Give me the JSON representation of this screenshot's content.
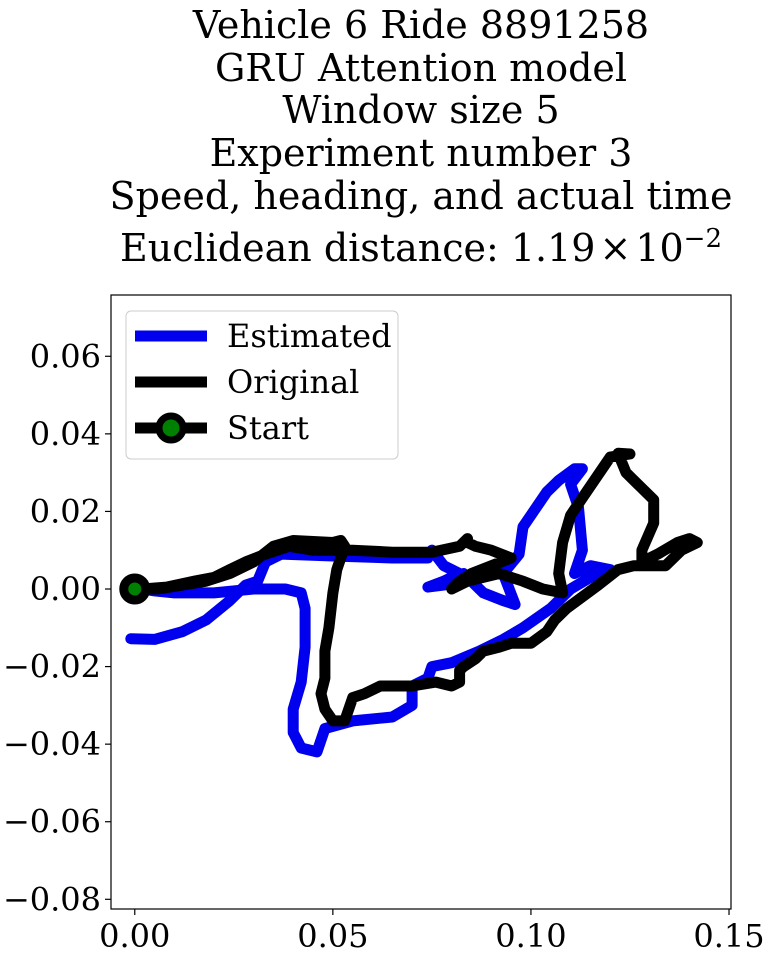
{
  "chart_data": {
    "type": "line",
    "title_lines": [
      "Vehicle 6 Ride 8891258",
      "GRU Attention model",
      "Window size 5",
      "Experiment number 3",
      "Speed, heading, and actual time"
    ],
    "title_distance": {
      "prefix": "Euclidean distance: ",
      "mantissa": "1.19",
      "times": "×",
      "base": "10",
      "exponent": "−2"
    },
    "xlim": [
      -0.006,
      0.1505
    ],
    "ylim": [
      -0.0825,
      0.0758
    ],
    "xticks": [
      {
        "value": 0.0,
        "label": "0.00"
      },
      {
        "value": 0.05,
        "label": "0.05"
      },
      {
        "value": 0.1,
        "label": "0.10"
      },
      {
        "value": 0.15,
        "label": "0.15"
      }
    ],
    "yticks": [
      {
        "value": 0.06,
        "label": "0.06"
      },
      {
        "value": 0.04,
        "label": "0.04"
      },
      {
        "value": 0.02,
        "label": "0.02"
      },
      {
        "value": 0.0,
        "label": "0.00"
      },
      {
        "value": -0.02,
        "label": "−0.02"
      },
      {
        "value": -0.04,
        "label": "−0.04"
      },
      {
        "value": -0.06,
        "label": "−0.06"
      },
      {
        "value": -0.08,
        "label": "−0.08"
      }
    ],
    "grid": false,
    "legend_position": "top-left",
    "legend": [
      {
        "label": "Estimated",
        "kind": "line",
        "color": "#0000ee"
      },
      {
        "label": "Original",
        "kind": "line",
        "color": "#000000"
      },
      {
        "label": "Start",
        "kind": "marker",
        "color": "#000000",
        "marker_color": "#008000"
      }
    ],
    "series": [
      {
        "name": "Estimated",
        "color": "#0000ee",
        "points": [
          [
            -0.001,
            -0.0128
          ],
          [
            0.005,
            -0.013
          ],
          [
            0.012,
            -0.011
          ],
          [
            0.018,
            -0.008
          ],
          [
            0.024,
            -0.003
          ],
          [
            0.028,
            0.001
          ],
          [
            0.031,
            0.002
          ],
          [
            0.033,
            0.007
          ],
          [
            0.037,
            0.009
          ],
          [
            0.05,
            0.0085
          ],
          [
            0.065,
            0.008
          ],
          [
            0.074,
            0.008
          ],
          [
            0.075,
            0.01
          ],
          [
            0.078,
            0.006
          ],
          [
            0.082,
            0.004
          ],
          [
            0.078,
            0.002
          ],
          [
            0.074,
            0.0005
          ],
          [
            0.078,
            0.001
          ],
          [
            0.083,
            0.004
          ],
          [
            0.088,
            -0.001
          ],
          [
            0.093,
            -0.003
          ],
          [
            0.096,
            -0.004
          ],
          [
            0.093,
            0.004
          ],
          [
            0.097,
            0.009
          ],
          [
            0.098,
            0.016
          ],
          [
            0.1,
            0.019
          ],
          [
            0.104,
            0.025
          ],
          [
            0.107,
            0.028
          ],
          [
            0.111,
            0.031
          ],
          [
            0.113,
            0.031
          ],
          [
            0.11,
            0.027
          ],
          [
            0.112,
            0.021
          ],
          [
            0.113,
            0.01
          ],
          [
            0.111,
            0.004
          ],
          [
            0.115,
            0.006
          ],
          [
            0.12,
            0.005
          ],
          [
            0.115,
            0.003
          ],
          [
            0.11,
            0.0
          ],
          [
            0.105,
            -0.005
          ],
          [
            0.098,
            -0.01
          ],
          [
            0.093,
            -0.013
          ],
          [
            0.087,
            -0.016
          ],
          [
            0.08,
            -0.019
          ],
          [
            0.075,
            -0.02
          ],
          [
            0.074,
            -0.023
          ],
          [
            0.07,
            -0.025
          ],
          [
            0.07,
            -0.03
          ],
          [
            0.065,
            -0.033
          ],
          [
            0.055,
            -0.034
          ],
          [
            0.048,
            -0.036
          ],
          [
            0.046,
            -0.042
          ],
          [
            0.042,
            -0.041
          ],
          [
            0.04,
            -0.037
          ],
          [
            0.04,
            -0.031
          ],
          [
            0.042,
            -0.024
          ],
          [
            0.043,
            -0.015
          ],
          [
            0.043,
            -0.005
          ],
          [
            0.042,
            -0.001
          ],
          [
            0.038,
            0.0
          ],
          [
            0.03,
            0.0
          ],
          [
            0.02,
            -0.001
          ],
          [
            0.01,
            -0.001
          ],
          [
            0.005,
            -0.0005
          ],
          [
            0.002,
            0.0
          ]
        ]
      },
      {
        "name": "Original",
        "color": "#000000",
        "points": [
          [
            0.0,
            0.0
          ],
          [
            0.006,
            0.0
          ],
          [
            0.012,
            0.001
          ],
          [
            0.018,
            0.002
          ],
          [
            0.024,
            0.004
          ],
          [
            0.03,
            0.007
          ],
          [
            0.035,
            0.011
          ],
          [
            0.04,
            0.0125
          ],
          [
            0.05,
            0.012
          ],
          [
            0.052,
            0.0125
          ],
          [
            0.053,
            0.011
          ],
          [
            0.051,
            0.005
          ],
          [
            0.05,
            -0.001
          ],
          [
            0.049,
            -0.01
          ],
          [
            0.048,
            -0.016
          ],
          [
            0.048,
            -0.023
          ],
          [
            0.047,
            -0.027
          ],
          [
            0.048,
            -0.031
          ],
          [
            0.05,
            -0.034
          ],
          [
            0.053,
            -0.034
          ],
          [
            0.055,
            -0.028
          ],
          [
            0.058,
            -0.027
          ],
          [
            0.062,
            -0.025
          ],
          [
            0.066,
            -0.025
          ],
          [
            0.07,
            -0.025
          ],
          [
            0.076,
            -0.024
          ],
          [
            0.08,
            -0.025
          ],
          [
            0.082,
            -0.024
          ],
          [
            0.082,
            -0.021
          ],
          [
            0.083,
            -0.02
          ],
          [
            0.086,
            -0.018
          ],
          [
            0.088,
            -0.016
          ],
          [
            0.092,
            -0.015
          ],
          [
            0.095,
            -0.014
          ],
          [
            0.1,
            -0.014
          ],
          [
            0.104,
            -0.011
          ],
          [
            0.106,
            -0.008
          ],
          [
            0.109,
            -0.005
          ],
          [
            0.113,
            -0.002
          ],
          [
            0.117,
            0.001
          ],
          [
            0.122,
            0.005
          ],
          [
            0.126,
            0.006
          ],
          [
            0.13,
            0.006
          ],
          [
            0.134,
            0.006
          ],
          [
            0.138,
            0.01
          ],
          [
            0.142,
            0.012
          ],
          [
            0.14,
            0.013
          ],
          [
            0.137,
            0.012
          ],
          [
            0.132,
            0.009
          ],
          [
            0.128,
            0.007
          ],
          [
            0.128,
            0.01
          ],
          [
            0.131,
            0.017
          ],
          [
            0.131,
            0.023
          ],
          [
            0.127,
            0.027
          ],
          [
            0.124,
            0.03
          ],
          [
            0.122,
            0.035
          ],
          [
            0.125,
            0.0348
          ],
          [
            0.12,
            0.034
          ],
          [
            0.114,
            0.025
          ],
          [
            0.11,
            0.019
          ],
          [
            0.108,
            0.012
          ],
          [
            0.107,
            0.004
          ],
          [
            0.108,
            -0.001
          ],
          [
            0.103,
            0.0
          ],
          [
            0.098,
            0.002
          ],
          [
            0.092,
            0.004
          ],
          [
            0.084,
            0.002
          ],
          [
            0.08,
            0.0
          ],
          [
            0.082,
            0.002
          ],
          [
            0.085,
            0.004
          ],
          [
            0.09,
            0.006
          ],
          [
            0.095,
            0.008
          ],
          [
            0.09,
            0.01
          ],
          [
            0.086,
            0.011
          ],
          [
            0.084,
            0.012
          ],
          [
            0.084,
            0.013
          ],
          [
            0.082,
            0.011
          ],
          [
            0.075,
            0.0095
          ],
          [
            0.065,
            0.0095
          ],
          [
            0.055,
            0.01
          ],
          [
            0.045,
            0.01
          ],
          [
            0.039,
            0.011
          ],
          [
            0.033,
            0.009
          ],
          [
            0.028,
            0.007
          ],
          [
            0.024,
            0.005
          ],
          [
            0.02,
            0.003
          ],
          [
            0.015,
            0.002
          ],
          [
            0.008,
            0.0005
          ],
          [
            0.002,
            0.0
          ]
        ]
      }
    ],
    "start_point": {
      "name": "Start",
      "x": 0.0,
      "y": 0.0
    }
  }
}
